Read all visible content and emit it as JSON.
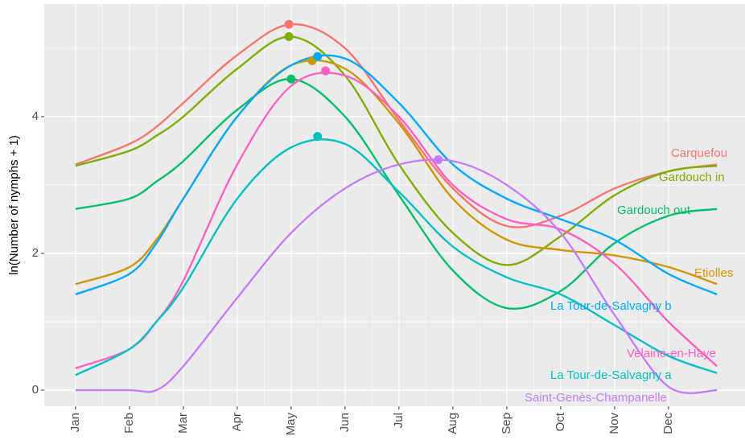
{
  "chart_data": {
    "type": "line",
    "y_label": "ln(Number of nymphs + 1)",
    "x": [
      1,
      2,
      2.5,
      3,
      4,
      5,
      6,
      7,
      8,
      9,
      10,
      11,
      12,
      12.9
    ],
    "xlim": [
      0.42,
      13.42
    ],
    "xticks": [
      {
        "value": 1,
        "label": "Jan"
      },
      {
        "value": 2,
        "label": "Feb"
      },
      {
        "value": 3,
        "label": "Mar"
      },
      {
        "value": 4,
        "label": "Apr"
      },
      {
        "value": 5,
        "label": "May"
      },
      {
        "value": 6,
        "label": "Jun"
      },
      {
        "value": 7,
        "label": "Jul"
      },
      {
        "value": 8,
        "label": "Aug"
      },
      {
        "value": 9,
        "label": "Sep"
      },
      {
        "value": 10,
        "label": "Oct"
      },
      {
        "value": 11,
        "label": "Nov"
      },
      {
        "value": 12,
        "label": "Dec"
      }
    ],
    "ylim": [
      -0.235,
      5.647
    ],
    "yticks": [
      0,
      2,
      4
    ],
    "grid": true,
    "series": [
      {
        "name": "Carquefou",
        "color": "#F8766D",
        "values": [
          3.3,
          3.6,
          3.85,
          4.2,
          4.9,
          5.35,
          5.0,
          3.95,
          2.95,
          2.4,
          2.55,
          2.95,
          3.2,
          3.3
        ],
        "peak": [
          4.96,
          5.35
        ]
      },
      {
        "name": "Gardouch in",
        "color": "#7CAE00",
        "values": [
          3.28,
          3.5,
          3.72,
          4.0,
          4.7,
          5.17,
          4.6,
          3.3,
          2.3,
          1.83,
          2.25,
          2.85,
          3.2,
          3.28
        ],
        "peak": [
          4.96,
          5.17
        ]
      },
      {
        "name": "Gardouch out",
        "color": "#00BE67",
        "values": [
          2.65,
          2.8,
          3.05,
          3.35,
          4.1,
          4.55,
          4.0,
          2.85,
          1.75,
          1.2,
          1.45,
          2.15,
          2.55,
          2.65
        ],
        "peak": [
          5.0,
          4.55
        ]
      },
      {
        "name": "Etiolles",
        "color": "#CD9600",
        "values": [
          1.55,
          1.8,
          2.2,
          2.8,
          4.0,
          4.75,
          4.7,
          3.9,
          2.8,
          2.2,
          2.05,
          1.97,
          1.8,
          1.55
        ],
        "peak": [
          5.39,
          4.82
        ]
      },
      {
        "name": "La Tour-de-Salvagny b",
        "color": "#00A9FF",
        "values": [
          1.4,
          1.7,
          2.15,
          2.8,
          4.0,
          4.75,
          4.85,
          4.2,
          3.3,
          2.8,
          2.5,
          2.2,
          1.7,
          1.4
        ],
        "peak": [
          5.49,
          4.88
        ]
      },
      {
        "name": "Velaine-en-Haye",
        "color": "#FF61C3",
        "values": [
          0.32,
          0.6,
          1.0,
          1.6,
          3.3,
          4.45,
          4.6,
          4.0,
          3.0,
          2.5,
          2.35,
          1.85,
          1.0,
          0.35
        ],
        "peak": [
          5.64,
          4.67
        ]
      },
      {
        "name": "La Tour-de-Salvagny a",
        "color": "#00BFC4",
        "values": [
          0.22,
          0.6,
          1.0,
          1.5,
          2.8,
          3.55,
          3.6,
          2.9,
          2.1,
          1.65,
          1.4,
          0.95,
          0.5,
          0.25
        ],
        "peak": [
          5.49,
          3.71
        ]
      },
      {
        "name": "Saint-Genès-Champanelle",
        "color": "#C77CFF",
        "values": [
          0,
          0,
          0,
          0.35,
          1.35,
          2.3,
          2.95,
          3.3,
          3.35,
          3.0,
          2.3,
          1.1,
          0.05,
          0
        ],
        "peak": [
          7.73,
          3.37
        ]
      }
    ]
  }
}
